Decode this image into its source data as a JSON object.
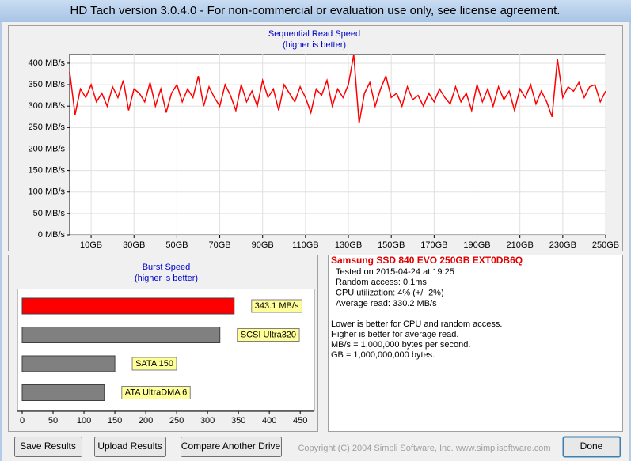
{
  "window": {
    "title": "HD Tach version 3.0.4.0  - For non-commercial or evaluation use only, see license agreement."
  },
  "chart_data": [
    {
      "type": "line",
      "title": "Sequential Read Speed",
      "subtitle": "(higher is better)",
      "x": [
        0,
        2.5,
        5,
        7.5,
        10,
        12.5,
        15,
        17.5,
        20,
        22.5,
        25,
        27.5,
        30,
        32.5,
        35,
        37.5,
        40,
        42.5,
        45,
        47.5,
        50,
        52.5,
        55,
        57.5,
        60,
        62.5,
        65,
        67.5,
        70,
        72.5,
        75,
        77.5,
        80,
        82.5,
        85,
        87.5,
        90,
        92.5,
        95,
        97.5,
        100,
        102.5,
        105,
        107.5,
        110,
        112.5,
        115,
        117.5,
        120,
        122.5,
        125,
        127.5,
        130,
        132.5,
        135,
        137.5,
        140,
        142.5,
        145,
        147.5,
        150,
        152.5,
        155,
        157.5,
        160,
        162.5,
        165,
        167.5,
        170,
        172.5,
        175,
        177.5,
        180,
        182.5,
        185,
        187.5,
        190,
        192.5,
        195,
        197.5,
        200,
        202.5,
        205,
        207.5,
        210,
        212.5,
        215,
        217.5,
        220,
        222.5,
        225,
        227.5,
        230,
        232.5,
        235,
        237.5,
        240,
        242.5,
        245,
        247.5,
        250
      ],
      "series": [
        {
          "color": "#ff0000",
          "values": [
            380,
            280,
            340,
            320,
            350,
            310,
            330,
            300,
            345,
            320,
            360,
            290,
            340,
            330,
            310,
            355,
            300,
            340,
            285,
            330,
            350,
            310,
            340,
            320,
            370,
            300,
            345,
            320,
            300,
            350,
            325,
            290,
            350,
            310,
            335,
            300,
            360,
            320,
            340,
            290,
            350,
            330,
            310,
            345,
            320,
            285,
            340,
            325,
            360,
            300,
            340,
            320,
            350,
            420,
            260,
            330,
            355,
            300,
            340,
            370,
            320,
            330,
            300,
            345,
            315,
            325,
            300,
            330,
            310,
            340,
            320,
            305,
            345,
            310,
            330,
            290,
            350,
            310,
            340,
            300,
            345,
            315,
            335,
            290,
            340,
            320,
            350,
            305,
            335,
            310,
            275,
            410,
            320,
            345,
            335,
            355,
            320,
            345,
            350,
            310,
            335
          ]
        }
      ],
      "xlim": [
        0,
        250
      ],
      "ylim": [
        0,
        422
      ],
      "xticks": [
        {
          "value": 10,
          "label": "10GB"
        },
        {
          "value": 30,
          "label": "30GB"
        },
        {
          "value": 50,
          "label": "50GB"
        },
        {
          "value": 70,
          "label": "70GB"
        },
        {
          "value": 90,
          "label": "90GB"
        },
        {
          "value": 110,
          "label": "110GB"
        },
        {
          "value": 130,
          "label": "130GB"
        },
        {
          "value": 150,
          "label": "150GB"
        },
        {
          "value": 170,
          "label": "170GB"
        },
        {
          "value": 190,
          "label": "190GB"
        },
        {
          "value": 210,
          "label": "210GB"
        },
        {
          "value": 230,
          "label": "230GB"
        },
        {
          "value": 250,
          "label": "250GB"
        }
      ],
      "yticks": [
        {
          "value": 0,
          "label": "0 MB/s"
        },
        {
          "value": 50,
          "label": "50 MB/s"
        },
        {
          "value": 100,
          "label": "100 MB/s"
        },
        {
          "value": 150,
          "label": "150 MB/s"
        },
        {
          "value": 200,
          "label": "200 MB/s"
        },
        {
          "value": 250,
          "label": "250 MB/s"
        },
        {
          "value": 300,
          "label": "300 MB/s"
        },
        {
          "value": 350,
          "label": "350 MB/s"
        },
        {
          "value": 400,
          "label": "400 MB/s"
        }
      ],
      "grid": true
    },
    {
      "type": "hbar",
      "title": "Burst Speed",
      "subtitle": "(higher is better)",
      "categories": [
        null,
        "SCSI Ultra320",
        "SATA 150",
        "ATA UltraDMA 6"
      ],
      "values": [
        343.1,
        320,
        150,
        133
      ],
      "value_labels": [
        "343.1 MB/s",
        null,
        null,
        null
      ],
      "colors": [
        "#ff0000",
        "#808080",
        "#808080",
        "#808080"
      ],
      "xlim": [
        0,
        460
      ],
      "xticks": [
        0,
        50,
        100,
        150,
        200,
        250,
        300,
        350,
        400,
        450
      ]
    }
  ],
  "info": {
    "drive": "Samsung SSD 840 EVO 250GB EXT0DB6Q",
    "lines": [
      "Tested on 2015-04-24 at 19:25",
      "Random access: 0.1ms",
      "CPU utilization: 4% (+/- 2%)",
      "Average read: 330.2 MB/s"
    ],
    "notes": [
      "Lower is better for CPU and random access.",
      "Higher is better for average read.",
      "MB/s = 1,000,000 bytes per second.",
      "GB = 1,000,000,000 bytes."
    ]
  },
  "buttons": [
    "Save Results",
    "Upload Results",
    "Compare Another Drive",
    "Done"
  ],
  "copyright": "Copyright (C) 2004 Simpli Software, Inc. www.simplisoftware.com"
}
